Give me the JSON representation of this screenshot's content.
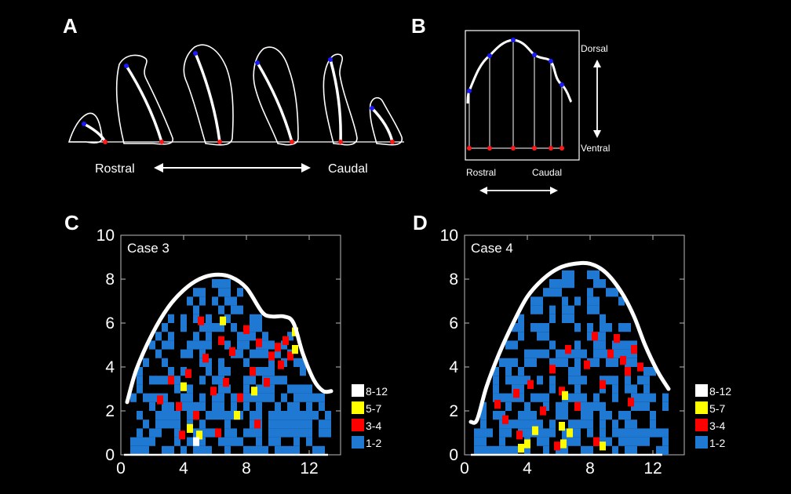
{
  "colors": {
    "background": "#000000",
    "outline": "#ffffff",
    "dorsal_marker": "#1a1aff",
    "ventral_marker": "#ff1a1a",
    "bin_8_12": "#ffffff",
    "bin_5_7": "#ffff00",
    "bin_3_4": "#ff0000",
    "bin_1_2": "#1f78d1"
  },
  "panel_a": {
    "letter": "A",
    "rostral_label": "Rostral",
    "caudal_label": "Caudal",
    "arrow_icon": "double-headed-arrow-icon"
  },
  "panel_b": {
    "letter": "B",
    "dorsal_label": "Dorsal",
    "ventral_label": "Ventral",
    "rostral_label": "Rostral",
    "caudal_label": "Caudal",
    "vertical_arrow_icon": "double-headed-arrow-icon",
    "horizontal_arrow_icon": "double-headed-arrow-icon"
  },
  "chart_data": [
    {
      "type": "heatmap",
      "panel": "C",
      "title": "Case 3",
      "xlim": [
        0,
        14
      ],
      "ylim": [
        0,
        10
      ],
      "xticks": [
        0,
        4,
        8,
        12
      ],
      "yticks": [
        0,
        2,
        4,
        6,
        8,
        10
      ],
      "bin_size": [
        0.4,
        0.4
      ],
      "legend": {
        "placement": "lower-right",
        "entries": [
          "8-12",
          "5-7",
          "3-4",
          "1-2"
        ]
      },
      "outline": [
        [
          0.4,
          2.4
        ],
        [
          1.0,
          3.9
        ],
        [
          2.0,
          5.5
        ],
        [
          3.0,
          6.7
        ],
        [
          4.0,
          7.5
        ],
        [
          5.0,
          8.0
        ],
        [
          6.0,
          8.2
        ],
        [
          7.0,
          8.1
        ],
        [
          8.0,
          7.6
        ],
        [
          9.0,
          6.5
        ],
        [
          9.6,
          6.3
        ],
        [
          10.4,
          6.3
        ],
        [
          11.0,
          6.0
        ],
        [
          11.6,
          4.6
        ],
        [
          12.3,
          3.4
        ],
        [
          12.9,
          2.9
        ],
        [
          13.4,
          2.9
        ]
      ],
      "baseline": [
        [
          0.2,
          0
        ],
        [
          13.2,
          0
        ]
      ],
      "cells_3_4": [
        [
          2.3,
          2.3
        ],
        [
          3.0,
          3.2
        ],
        [
          3.5,
          2.0
        ],
        [
          4.1,
          3.5
        ],
        [
          4.6,
          1.6
        ],
        [
          5.2,
          4.2
        ],
        [
          5.7,
          2.7
        ],
        [
          6.2,
          5.0
        ],
        [
          6.5,
          3.1
        ],
        [
          6.9,
          4.5
        ],
        [
          7.4,
          2.4
        ],
        [
          7.8,
          5.5
        ],
        [
          8.2,
          3.6
        ],
        [
          8.6,
          4.9
        ],
        [
          9.1,
          3.1
        ],
        [
          9.4,
          4.3
        ],
        [
          9.8,
          4.7
        ],
        [
          10.0,
          3.9
        ],
        [
          10.3,
          5.0
        ],
        [
          10.6,
          4.3
        ],
        [
          3.7,
          0.7
        ],
        [
          6.0,
          0.8
        ],
        [
          8.5,
          1.2
        ],
        [
          4.9,
          5.9
        ]
      ],
      "cells_5_7": [
        [
          4.2,
          1.0
        ],
        [
          4.8,
          0.7
        ],
        [
          6.3,
          5.9
        ],
        [
          7.2,
          1.6
        ],
        [
          8.3,
          2.7
        ],
        [
          10.9,
          5.4
        ],
        [
          10.9,
          4.6
        ],
        [
          3.8,
          2.9
        ]
      ],
      "cells_8_12": [
        [
          4.6,
          0.4
        ]
      ]
    },
    {
      "type": "heatmap",
      "panel": "D",
      "title": "Case 4",
      "xlim": [
        0,
        14
      ],
      "ylim": [
        0,
        10
      ],
      "xticks": [
        0,
        4,
        8,
        12
      ],
      "yticks": [
        0,
        2,
        4,
        6,
        8,
        10
      ],
      "bin_size": [
        0.4,
        0.4
      ],
      "legend": {
        "placement": "lower-right",
        "entries": [
          "8-12",
          "5-7",
          "3-4",
          "1-2"
        ]
      },
      "outline": [
        [
          0.4,
          1.5
        ],
        [
          0.8,
          1.6
        ],
        [
          1.4,
          3.1
        ],
        [
          2.2,
          4.6
        ],
        [
          3.1,
          6.0
        ],
        [
          4.0,
          7.2
        ],
        [
          5.0,
          8.0
        ],
        [
          6.0,
          8.5
        ],
        [
          7.0,
          8.7
        ],
        [
          8.0,
          8.7
        ],
        [
          9.0,
          8.3
        ],
        [
          10.0,
          7.4
        ],
        [
          10.8,
          6.3
        ],
        [
          11.5,
          5.0
        ],
        [
          12.3,
          3.8
        ],
        [
          13.0,
          3.0
        ]
      ],
      "baseline": [
        [
          0.4,
          0
        ],
        [
          12.6,
          0
        ]
      ],
      "cells_3_4": [
        [
          1.9,
          2.1
        ],
        [
          2.4,
          1.4
        ],
        [
          3.1,
          2.6
        ],
        [
          4.0,
          3.0
        ],
        [
          4.8,
          1.8
        ],
        [
          5.4,
          3.7
        ],
        [
          6.0,
          2.7
        ],
        [
          6.4,
          4.6
        ],
        [
          7.0,
          2.0
        ],
        [
          7.6,
          3.9
        ],
        [
          8.1,
          5.2
        ],
        [
          8.6,
          3.0
        ],
        [
          9.1,
          4.4
        ],
        [
          9.5,
          5.1
        ],
        [
          9.9,
          4.1
        ],
        [
          10.2,
          3.6
        ],
        [
          10.6,
          4.6
        ],
        [
          11.0,
          3.8
        ],
        [
          3.3,
          0.7
        ],
        [
          5.7,
          0.2
        ],
        [
          8.2,
          0.4
        ],
        [
          10.4,
          2.2
        ]
      ],
      "cells_5_7": [
        [
          3.4,
          0.1
        ],
        [
          3.8,
          0.3
        ],
        [
          4.3,
          0.9
        ],
        [
          6.0,
          1.1
        ],
        [
          6.1,
          0.3
        ],
        [
          6.5,
          0.8
        ],
        [
          8.6,
          0.2
        ],
        [
          6.2,
          2.5
        ]
      ],
      "cells_8_12": []
    }
  ]
}
